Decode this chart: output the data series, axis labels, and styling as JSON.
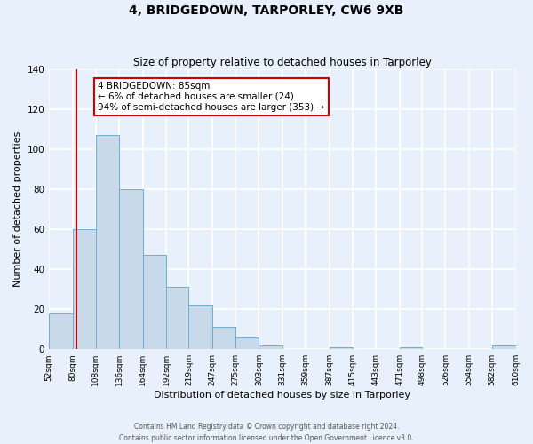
{
  "title": "4, BRIDGEDOWN, TARPORLEY, CW6 9XB",
  "subtitle": "Size of property relative to detached houses in Tarporley",
  "xlabel": "Distribution of detached houses by size in Tarporley",
  "ylabel": "Number of detached properties",
  "bin_edges": [
    52,
    80,
    108,
    136,
    164,
    192,
    219,
    247,
    275,
    303,
    331,
    359,
    387,
    415,
    443,
    471,
    498,
    526,
    554,
    582,
    610
  ],
  "bar_heights": [
    18,
    60,
    107,
    80,
    47,
    31,
    22,
    11,
    6,
    2,
    0,
    0,
    1,
    0,
    0,
    1,
    0,
    0,
    0,
    2
  ],
  "bar_color": "#c8d9ea",
  "bar_edge_color": "#6aaed6",
  "property_line_x": 85,
  "property_line_color": "#cc0000",
  "ylim": [
    0,
    140
  ],
  "yticks": [
    0,
    20,
    40,
    60,
    80,
    100,
    120,
    140
  ],
  "annotation_text": "4 BRIDGEDOWN: 85sqm\n← 6% of detached houses are smaller (24)\n94% of semi-detached houses are larger (353) →",
  "annotation_box_color": "#cc0000",
  "footer_line1": "Contains HM Land Registry data © Crown copyright and database right 2024.",
  "footer_line2": "Contains public sector information licensed under the Open Government Licence v3.0.",
  "background_color": "#e8f1fb",
  "plot_bg_color": "#e8f1fb",
  "grid_color": "#ffffff"
}
